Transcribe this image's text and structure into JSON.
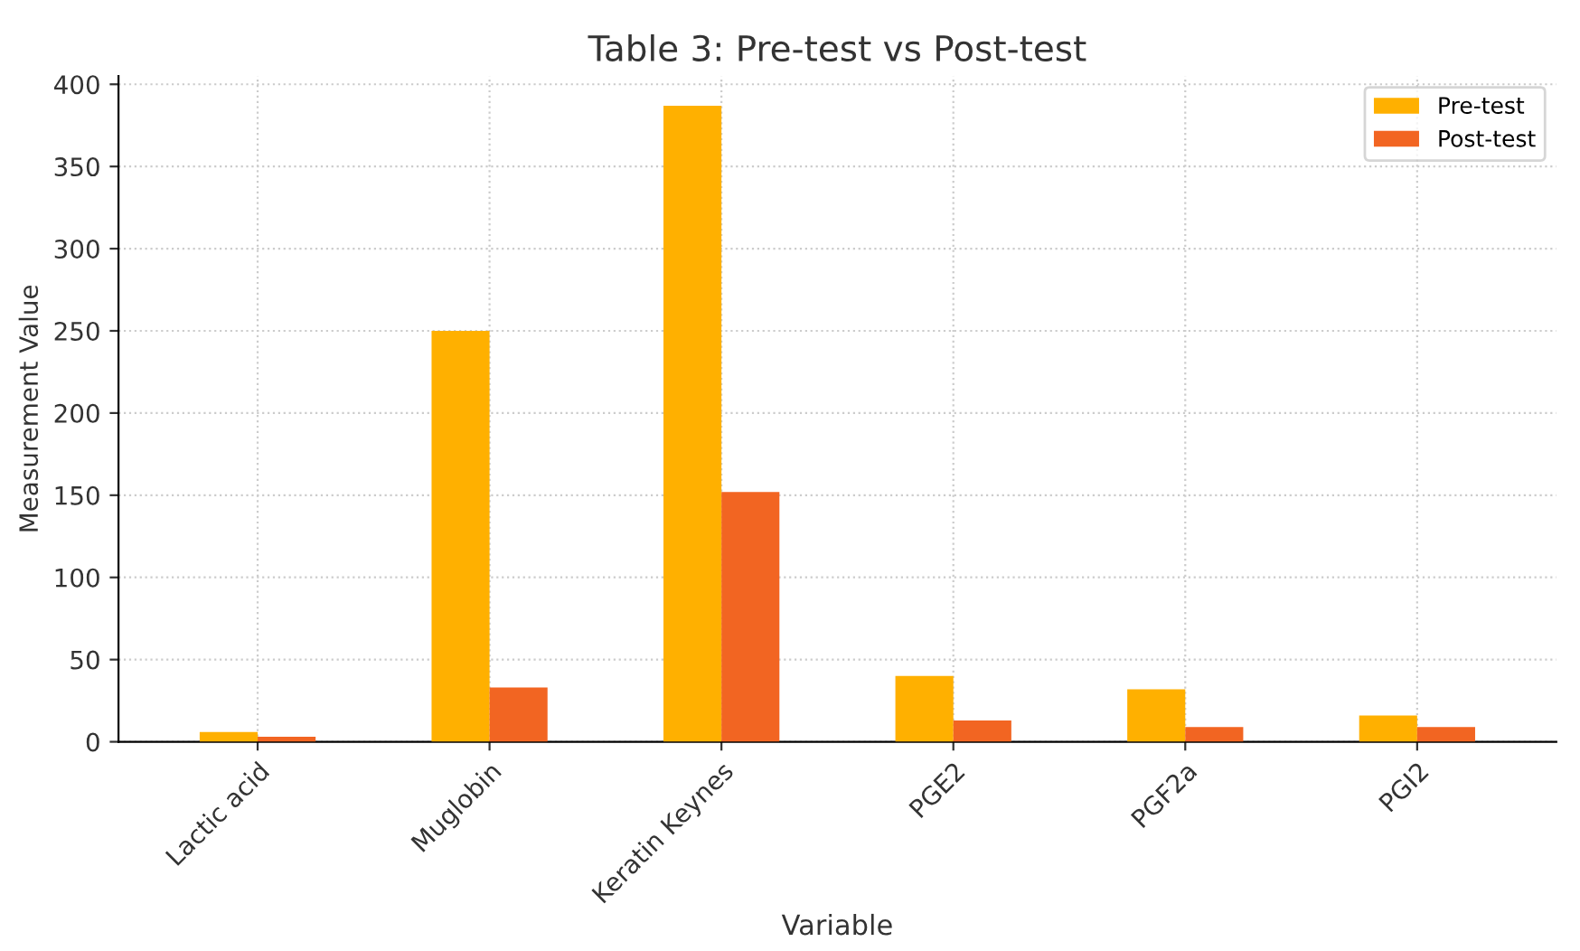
{
  "chart_data": {
    "type": "bar",
    "title": "Table 3: Pre-test vs Post-test",
    "xlabel": "Variable",
    "ylabel": "Measurement Value",
    "categories": [
      "Lactic acid",
      "Muglobin",
      "Keratin Keynes",
      "PGE2",
      "PGF2a",
      "PGI2"
    ],
    "series": [
      {
        "name": "Pre-test",
        "color": "#ffb000",
        "values": [
          6,
          250,
          387,
          40,
          32,
          16
        ]
      },
      {
        "name": "Post-test",
        "color": "#f26522",
        "values": [
          3,
          33,
          152,
          13,
          9,
          9
        ]
      }
    ],
    "ylim": [
      0,
      405
    ],
    "yticks": [
      0,
      50,
      100,
      150,
      200,
      250,
      300,
      350,
      400
    ],
    "grid": true,
    "legend": "top right"
  }
}
